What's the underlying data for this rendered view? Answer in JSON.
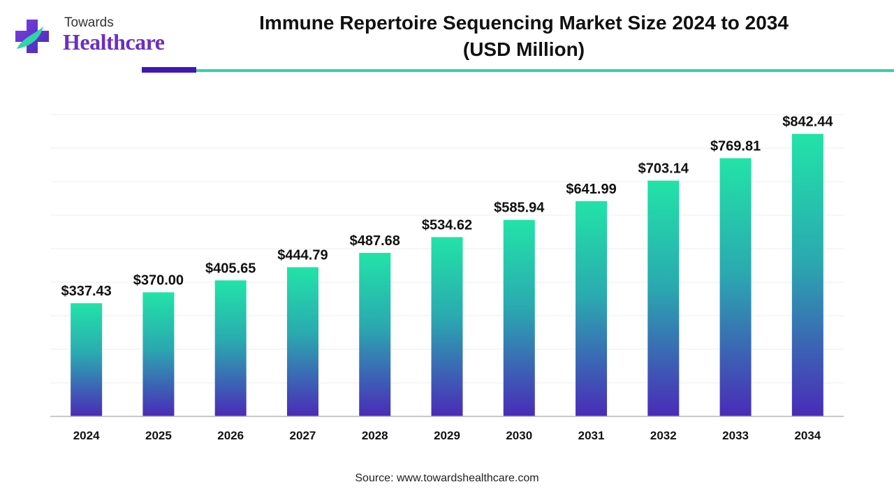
{
  "brand": {
    "top": "Towards",
    "main": "Healthcare"
  },
  "title_line1": "Immune Repertoire Sequencing Market Size 2024 to 2034",
  "title_line2": "(USD Million)",
  "source": "Source: www.towardshealthcare.com",
  "colors": {
    "bar_top": "#22e3a8",
    "bar_bottom": "#4a2bb8",
    "accent_dark": "#3d18b8",
    "accent_light": "#2fd4a8",
    "logo_purple": "#6a2fc2"
  },
  "chart_data": {
    "type": "bar",
    "categories": [
      "2024",
      "2025",
      "2026",
      "2027",
      "2028",
      "2029",
      "2030",
      "2031",
      "2032",
      "2033",
      "2034"
    ],
    "values": [
      337.43,
      370.0,
      405.65,
      444.79,
      487.68,
      534.62,
      585.94,
      641.99,
      703.14,
      769.81,
      842.44
    ],
    "value_labels": [
      "$337.43",
      "$370.00",
      "$405.65",
      "$444.79",
      "$487.68",
      "$534.62",
      "$585.94",
      "$641.99",
      "$703.14",
      "$769.81",
      "$842.44"
    ],
    "title": "Immune Repertoire Sequencing Market Size 2024 to 2034 (USD Million)",
    "xlabel": "",
    "ylabel": "",
    "ylim": [
      0,
      900
    ],
    "grid": true,
    "legend": "none"
  }
}
